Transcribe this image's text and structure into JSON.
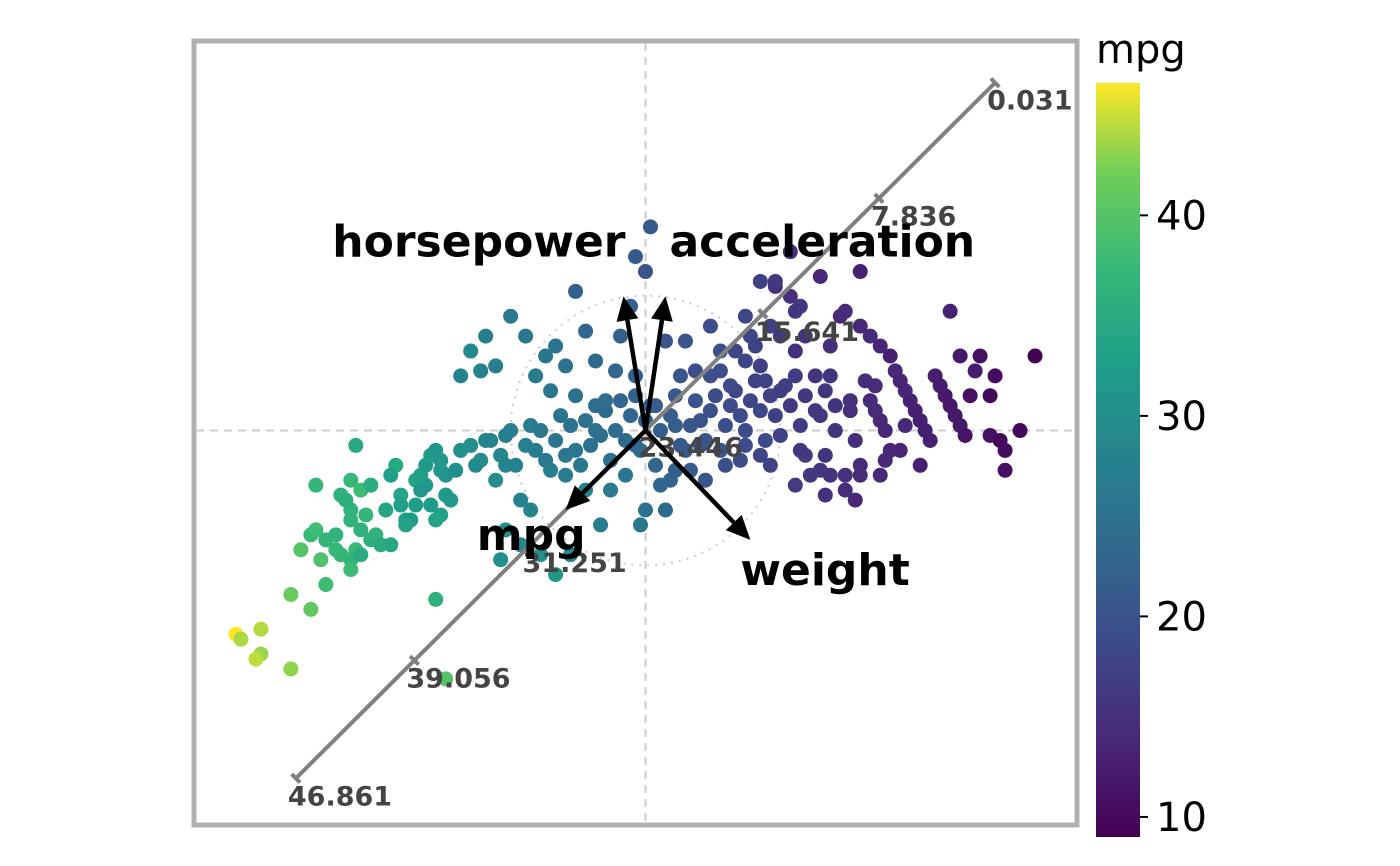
{
  "chart_data": {
    "type": "scatter",
    "description_kind": "biplot",
    "colorbar": {
      "title": "mpg",
      "colormap": "viridis",
      "range": [
        9,
        46.6
      ],
      "ticks": [
        10,
        20,
        30,
        40
      ],
      "tick_labels": [
        "10",
        "20",
        "30",
        "40"
      ]
    },
    "axes": {
      "xlim": [
        -4.5,
        4.3
      ],
      "ylim": [
        -3.95,
        3.9
      ],
      "origin_lines": true,
      "grid": false
    },
    "biplot_arrows": [
      {
        "label": "horsepower",
        "dx": -0.22,
        "dy": 1.35
      },
      {
        "label": "acceleration",
        "dx": 0.2,
        "dy": 1.35
      },
      {
        "label": "mpg",
        "dx": -0.8,
        "dy": -0.8
      },
      {
        "label": "weight",
        "dx": 1.05,
        "dy": -1.1
      }
    ],
    "calibrated_axis": {
      "variable": "mpg",
      "start": [
        -3.5,
        -3.5
      ],
      "end": [
        3.5,
        3.5
      ],
      "ticks": [
        {
          "label": "0.031",
          "t": 1.0
        },
        {
          "label": "7.836",
          "t": 0.8339
        },
        {
          "label": "15.641",
          "t": 0.6678
        },
        {
          "label": "23.446",
          "t": 0.5017
        },
        {
          "label": "31.251",
          "t": 0.3356
        },
        {
          "label": "39.056",
          "t": 0.1695
        },
        {
          "label": "46.861",
          "t": 0.0
        }
      ]
    },
    "points": [
      [
        -4.1,
        -2.05,
        46.6
      ],
      [
        -4.05,
        -2.1,
        44.0
      ],
      [
        -3.85,
        -2.0,
        44.3
      ],
      [
        -3.85,
        -2.25,
        43.4
      ],
      [
        -3.9,
        -2.3,
        44.6
      ],
      [
        -3.55,
        -2.4,
        43.1
      ],
      [
        -3.55,
        -1.65,
        41.5
      ],
      [
        -3.35,
        -1.8,
        40.8
      ],
      [
        -3.45,
        -1.2,
        40.0
      ],
      [
        -3.25,
        -1.3,
        39.4
      ],
      [
        -3.2,
        -1.55,
        38.0
      ],
      [
        -2.1,
        -1.7,
        36.0
      ],
      [
        -2.95,
        -0.5,
        37.2
      ],
      [
        -2.85,
        -0.6,
        38.1
      ],
      [
        -2.95,
        -0.8,
        36.4
      ],
      [
        -2.8,
        -0.85,
        37.0
      ],
      [
        -2.85,
        -1.0,
        36.1
      ],
      [
        -2.75,
        -1.1,
        35.7
      ],
      [
        -2.9,
        -1.2,
        37.7
      ],
      [
        -2.95,
        -1.3,
        36.8
      ],
      [
        -2.85,
        -1.25,
        35.0
      ],
      [
        -2.95,
        -1.4,
        38.0
      ],
      [
        -3.05,
        -1.25,
        36.9
      ],
      [
        -3.1,
        -1.2,
        37.3
      ],
      [
        -2.7,
        -1.05,
        36.1
      ],
      [
        -2.65,
        -1.15,
        35.1
      ],
      [
        -2.55,
        -1.15,
        34.4
      ],
      [
        -2.5,
        -0.35,
        34.5
      ],
      [
        -2.45,
        -0.65,
        34.1
      ],
      [
        -2.4,
        -0.9,
        33.5
      ],
      [
        -2.45,
        -0.75,
        33.0
      ],
      [
        -2.3,
        -0.75,
        32.9
      ],
      [
        -2.35,
        -0.9,
        32.4
      ],
      [
        -2.3,
        -0.5,
        34.0
      ],
      [
        -2.25,
        -0.45,
        33.0
      ],
      [
        -2.2,
        -0.55,
        32.0
      ],
      [
        -2.25,
        -0.6,
        31.5
      ],
      [
        -2.2,
        -0.35,
        31.8
      ],
      [
        -2.15,
        -0.75,
        32.2
      ],
      [
        -2.15,
        -0.25,
        32.7
      ],
      [
        -2.1,
        -0.2,
        31.0
      ],
      [
        -2.05,
        -0.3,
        31.3
      ],
      [
        -2.05,
        -0.4,
        31.9
      ],
      [
        -2.0,
        -0.45,
        30.9
      ],
      [
        -2.05,
        -0.85,
        32.8
      ],
      [
        -2.1,
        -0.9,
        33.7
      ],
      [
        -2.0,
        -0.65,
        32.4
      ],
      [
        -1.95,
        -0.7,
        31.6
      ],
      [
        -1.9,
        -0.4,
        30.0
      ],
      [
        -1.85,
        -0.2,
        30.5
      ],
      [
        -1.75,
        -0.15,
        29.9
      ],
      [
        -1.7,
        -0.35,
        29.0
      ],
      [
        -1.65,
        -0.3,
        29.5
      ],
      [
        -1.6,
        -0.1,
        28.4
      ],
      [
        -1.55,
        -0.1,
        28.0
      ],
      [
        -1.5,
        -0.5,
        29.8
      ],
      [
        -1.45,
        -0.25,
        28.8
      ],
      [
        -1.4,
        -0.35,
        28.1
      ],
      [
        -1.4,
        -0.05,
        27.2
      ],
      [
        -1.35,
        0.0,
        27.0
      ],
      [
        -1.3,
        -0.35,
        27.9
      ],
      [
        -1.25,
        -0.7,
        28.0
      ],
      [
        -1.2,
        -0.15,
        27.5
      ],
      [
        -1.15,
        0.05,
        26.8
      ],
      [
        -1.1,
        -0.2,
        26.5
      ],
      [
        -1.05,
        0.0,
        26.0
      ],
      [
        -1.0,
        -0.3,
        26.4
      ],
      [
        -0.95,
        -0.4,
        27.2
      ],
      [
        -0.9,
        -0.1,
        25.8
      ],
      [
        -0.85,
        0.15,
        25.4
      ],
      [
        -0.8,
        -0.25,
        25.9
      ],
      [
        -0.8,
        -0.45,
        26.6
      ],
      [
        -0.75,
        0.05,
        25.1
      ],
      [
        -0.7,
        -0.2,
        25.6
      ],
      [
        -0.7,
        0.35,
        24.8
      ],
      [
        -0.65,
        -0.35,
        26.1
      ],
      [
        -0.6,
        0.1,
        25.0
      ],
      [
        -0.6,
        -0.6,
        27.5
      ],
      [
        -0.55,
        -0.15,
        24.9
      ],
      [
        -0.5,
        0.0,
        24.6
      ],
      [
        -0.5,
        0.25,
        24.0
      ],
      [
        -0.45,
        -0.05,
        24.5
      ],
      [
        -0.4,
        0.2,
        23.8
      ],
      [
        -0.35,
        -0.3,
        25.0
      ],
      [
        -0.3,
        0.0,
        23.9
      ],
      [
        -0.25,
        0.3,
        23.0
      ],
      [
        -0.2,
        -0.1,
        23.5
      ],
      [
        -0.15,
        0.15,
        23.0
      ],
      [
        -0.1,
        0.35,
        22.5
      ],
      [
        -0.05,
        -0.2,
        23.6
      ],
      [
        -1.85,
        0.55,
        28.0
      ],
      [
        -1.75,
        0.8,
        29.0
      ],
      [
        -1.65,
        0.6,
        28.0
      ],
      [
        -1.6,
        0.95,
        27.0
      ],
      [
        -1.5,
        0.65,
        27.0
      ],
      [
        -1.35,
        1.15,
        26.0
      ],
      [
        -1.2,
        0.95,
        26.0
      ],
      [
        -1.1,
        0.55,
        26.5
      ],
      [
        -1.0,
        0.75,
        25.5
      ],
      [
        -0.95,
        0.4,
        25.5
      ],
      [
        -0.9,
        0.85,
        25.0
      ],
      [
        -0.8,
        0.65,
        25.0
      ],
      [
        -0.7,
        1.4,
        22.0
      ],
      [
        -0.6,
        1.0,
        23.0
      ],
      [
        -0.5,
        0.7,
        23.5
      ],
      [
        -0.4,
        0.3,
        24.0
      ],
      [
        -0.3,
        0.6,
        23.0
      ],
      [
        -0.25,
        0.95,
        22.0
      ],
      [
        -0.15,
        1.25,
        21.5
      ],
      [
        -0.1,
        1.75,
        21.0
      ],
      [
        0.05,
        2.05,
        21.0
      ],
      [
        0.0,
        1.6,
        20.0
      ],
      [
        -0.1,
        0.55,
        22.5
      ],
      [
        0.05,
        0.25,
        22.0
      ],
      [
        -2.4,
        -0.95,
        33.5
      ],
      [
        -2.55,
        -0.45,
        33.0
      ],
      [
        -2.6,
        -0.8,
        34.0
      ],
      [
        -2.75,
        -0.55,
        35.0
      ],
      [
        -2.9,
        -0.15,
        34.5
      ],
      [
        -3.35,
        -1.05,
        37.5
      ],
      [
        -3.3,
        -1.0,
        38.0
      ],
      [
        -3.1,
        -1.05,
        36.5
      ],
      [
        -3.2,
        -1.1,
        37.0
      ],
      [
        -3.05,
        -0.65,
        36.0
      ],
      [
        -2.95,
        -0.9,
        36.5
      ],
      [
        -3.0,
        -0.7,
        35.5
      ],
      [
        -3.3,
        -0.55,
        37.0
      ],
      [
        -2.0,
        -2.5,
        40.0
      ],
      [
        -1.45,
        -1.3,
        30.0
      ],
      [
        -1.25,
        -1.15,
        29.0
      ],
      [
        -1.4,
        -1.0,
        29.5
      ],
      [
        -1.15,
        -0.8,
        28.0
      ],
      [
        -1.05,
        -1.25,
        30.5
      ],
      [
        -0.75,
        -1.25,
        29.0
      ],
      [
        -0.9,
        -1.45,
        31.5
      ],
      [
        -0.45,
        -0.95,
        27.0
      ],
      [
        0.0,
        -0.8,
        24.5
      ],
      [
        -0.05,
        -0.95,
        26.0
      ],
      [
        0.2,
        -0.8,
        23.5
      ],
      [
        -0.35,
        -0.6,
        26.5
      ],
      [
        -0.2,
        -0.45,
        25.5
      ],
      [
        0.1,
        -0.35,
        23.0
      ],
      [
        -0.1,
        -0.15,
        23.0
      ],
      [
        0.0,
        0.1,
        22.0
      ],
      [
        0.1,
        0.25,
        21.5
      ],
      [
        0.15,
        0.0,
        22.0
      ],
      [
        0.25,
        0.15,
        21.5
      ],
      [
        0.3,
        0.35,
        21.0
      ],
      [
        0.3,
        -0.4,
        22.0
      ],
      [
        0.4,
        -0.2,
        21.0
      ],
      [
        0.45,
        0.05,
        20.5
      ],
      [
        0.5,
        0.3,
        20.0
      ],
      [
        0.55,
        0.1,
        20.0
      ],
      [
        0.6,
        -0.1,
        20.5
      ],
      [
        0.65,
        0.2,
        19.5
      ],
      [
        0.7,
        0.35,
        19.0
      ],
      [
        0.75,
        -0.2,
        20.0
      ],
      [
        0.8,
        0.05,
        19.0
      ],
      [
        0.85,
        0.25,
        18.5
      ],
      [
        0.9,
        0.4,
        18.0
      ],
      [
        0.95,
        0.15,
        18.5
      ],
      [
        1.0,
        0.0,
        18.5
      ],
      [
        1.05,
        0.3,
        18.0
      ],
      [
        1.1,
        0.5,
        17.5
      ],
      [
        1.15,
        0.2,
        18.0
      ],
      [
        1.2,
        -0.1,
        18.5
      ],
      [
        1.25,
        0.35,
        17.5
      ],
      [
        1.3,
        0.15,
        17.0
      ],
      [
        1.35,
        -0.05,
        17.5
      ],
      [
        1.4,
        0.45,
        17.0
      ],
      [
        1.45,
        0.25,
        16.5
      ],
      [
        1.5,
        0.55,
        16.5
      ],
      [
        1.55,
        0.05,
        16.5
      ],
      [
        1.6,
        0.35,
        16.0
      ],
      [
        1.6,
        -0.25,
        16.5
      ],
      [
        1.7,
        0.2,
        16.0
      ],
      [
        1.75,
        -0.4,
        16.0
      ],
      [
        1.8,
        0.4,
        15.5
      ],
      [
        1.85,
        -0.45,
        15.5
      ],
      [
        1.9,
        0.0,
        15.5
      ],
      [
        2.0,
        -0.45,
        15.0
      ],
      [
        2.05,
        0.2,
        15.0
      ],
      [
        2.1,
        -0.1,
        15.0
      ],
      [
        2.15,
        -0.35,
        14.5
      ],
      [
        2.2,
        0.5,
        15.0
      ],
      [
        2.25,
        0.3,
        14.5
      ],
      [
        2.3,
        0.2,
        14.5
      ],
      [
        2.35,
        0.1,
        14.0
      ],
      [
        2.4,
        0.0,
        14.0
      ],
      [
        2.45,
        -0.2,
        14.0
      ],
      [
        2.5,
        0.6,
        14.0
      ],
      [
        2.55,
        0.5,
        13.5
      ],
      [
        2.6,
        0.4,
        13.5
      ],
      [
        2.65,
        0.3,
        13.0
      ],
      [
        2.7,
        0.2,
        13.0
      ],
      [
        2.75,
        0.1,
        13.0
      ],
      [
        2.8,
        0.0,
        13.0
      ],
      [
        2.85,
        -0.1,
        13.0
      ],
      [
        2.9,
        0.55,
        12.5
      ],
      [
        2.95,
        0.45,
        12.5
      ],
      [
        3.0,
        0.35,
        12.0
      ],
      [
        3.05,
        0.25,
        12.0
      ],
      [
        3.1,
        0.15,
        12.0
      ],
      [
        3.15,
        0.05,
        12.0
      ],
      [
        3.2,
        -0.05,
        11.5
      ],
      [
        3.25,
        0.35,
        11.0
      ],
      [
        3.35,
        0.75,
        11.0
      ],
      [
        3.45,
        0.35,
        10.0
      ],
      [
        3.5,
        0.55,
        10.5
      ],
      [
        3.45,
        -0.05,
        11.0
      ],
      [
        3.55,
        -0.1,
        10.0
      ],
      [
        3.6,
        -0.2,
        10.5
      ],
      [
        3.6,
        -0.4,
        11.0
      ],
      [
        3.75,
        0.0,
        10.0
      ],
      [
        3.9,
        0.75,
        9.0
      ],
      [
        3.05,
        1.2,
        13.0
      ],
      [
        3.15,
        0.75,
        12.0
      ],
      [
        3.3,
        0.6,
        12.5
      ],
      [
        1.95,
        1.15,
        14.0
      ],
      [
        2.15,
        1.05,
        14.0
      ],
      [
        2.25,
        0.95,
        14.5
      ],
      [
        2.35,
        0.85,
        13.5
      ],
      [
        2.45,
        0.75,
        13.0
      ],
      [
        2.0,
        1.2,
        14.5
      ],
      [
        1.5,
        0.8,
        15.0
      ],
      [
        1.6,
        0.95,
        15.5
      ],
      [
        1.85,
        0.85,
        15.0
      ],
      [
        1.55,
        1.25,
        16.0
      ],
      [
        1.25,
        1.05,
        17.0
      ],
      [
        1.35,
        0.95,
        16.5
      ],
      [
        1.1,
        0.85,
        17.5
      ],
      [
        0.9,
        0.8,
        18.0
      ],
      [
        1.0,
        0.7,
        18.0
      ],
      [
        1.15,
        0.65,
        17.0
      ],
      [
        0.5,
        0.6,
        19.0
      ],
      [
        0.65,
        0.55,
        19.5
      ],
      [
        0.75,
        0.6,
        19.0
      ],
      [
        0.4,
        0.9,
        20.0
      ],
      [
        0.65,
        1.05,
        19.0
      ],
      [
        0.75,
        0.8,
        19.5
      ],
      [
        1.3,
        1.45,
        15.0
      ],
      [
        1.45,
        1.35,
        15.0
      ],
      [
        1.5,
        1.2,
        16.0
      ],
      [
        1.45,
        1.8,
        15.0
      ],
      [
        1.75,
        1.55,
        14.0
      ],
      [
        2.15,
        1.6,
        13.0
      ],
      [
        1.3,
        1.5,
        16.0
      ],
      [
        1.15,
        1.5,
        17.0
      ],
      [
        1.0,
        1.15,
        18.0
      ],
      [
        1.05,
        0.95,
        18.0
      ],
      [
        0.2,
        0.9,
        20.0
      ],
      [
        0.35,
        0.55,
        20.5
      ],
      [
        0.95,
        -0.3,
        19.0
      ],
      [
        1.15,
        -0.25,
        18.0
      ],
      [
        1.25,
        -0.35,
        17.5
      ],
      [
        1.8,
        -0.65,
        15.0
      ],
      [
        2.0,
        -0.6,
        14.5
      ],
      [
        2.1,
        -0.7,
        14.0
      ],
      [
        2.4,
        -0.3,
        14.0
      ],
      [
        2.55,
        -0.2,
        13.5
      ],
      [
        2.75,
        -0.35,
        13.0
      ],
      [
        2.35,
        -0.45,
        14.0
      ],
      [
        2.15,
        -0.45,
        14.5
      ],
      [
        1.8,
        -0.25,
        15.5
      ],
      [
        1.5,
        -0.55,
        16.5
      ],
      [
        1.65,
        -0.45,
        16.0
      ],
      [
        1.55,
        -0.2,
        16.0
      ],
      [
        1.2,
        0.5,
        17.5
      ],
      [
        1.35,
        0.4,
        17.0
      ],
      [
        1.7,
        0.55,
        15.5
      ],
      [
        1.85,
        0.55,
        15.5
      ],
      [
        1.9,
        0.25,
        15.5
      ],
      [
        2.05,
        0.3,
        15.0
      ],
      [
        2.3,
        0.45,
        14.5
      ],
      [
        2.6,
        0.05,
        14.0
      ],
      [
        1.75,
        0.15,
        16.0
      ],
      [
        0.55,
        -0.15,
        20.0
      ],
      [
        0.6,
        -0.5,
        20.5
      ],
      [
        0.45,
        -0.4,
        21.0
      ],
      [
        0.25,
        -0.5,
        22.0
      ],
      [
        0.35,
        -0.15,
        21.0
      ],
      [
        0.15,
        -0.55,
        23.0
      ],
      [
        0.3,
        0.05,
        21.5
      ],
      [
        0.8,
        -0.35,
        19.5
      ],
      [
        1.0,
        -0.15,
        18.5
      ],
      [
        0.85,
        0.45,
        18.5
      ]
    ]
  }
}
